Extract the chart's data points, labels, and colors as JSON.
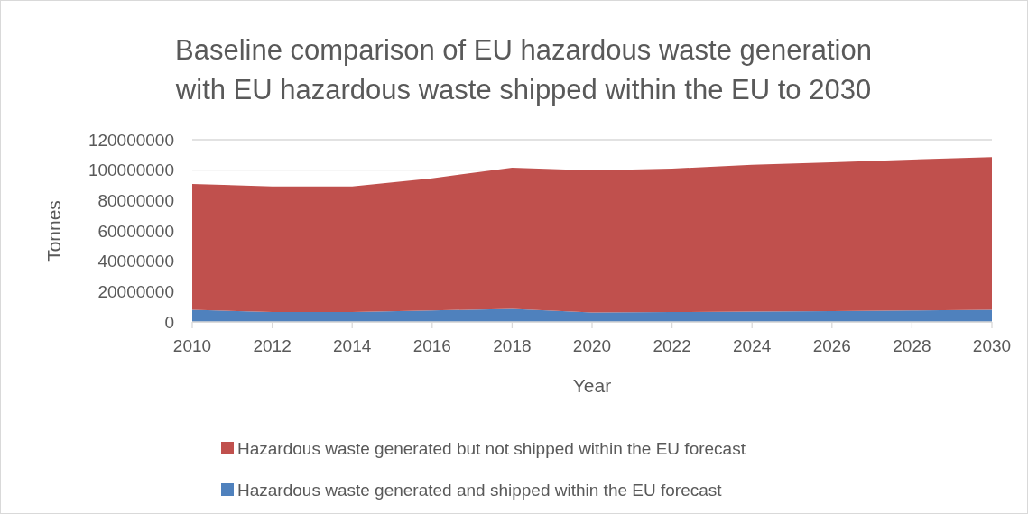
{
  "chart_data": {
    "type": "area",
    "title": "Baseline comparison of EU hazardous waste generation\nwith EU hazardous waste shipped within the EU to 2030",
    "xlabel": "Year",
    "ylabel": "Tonnes",
    "x": [
      2010,
      2012,
      2014,
      2016,
      2018,
      2020,
      2022,
      2024,
      2026,
      2028,
      2030
    ],
    "stacked": true,
    "series": [
      {
        "name": "Hazardous waste generated and shipped within the EU forecast",
        "color": "#4f81bd",
        "values": [
          8000000,
          6500000,
          6500000,
          7600000,
          8600000,
          6200000,
          6500000,
          6900000,
          7200000,
          7600000,
          8000000
        ]
      },
      {
        "name": "Hazardous waste generated but not shipped within the EU forecast",
        "color": "#c0504d",
        "values": [
          82900000,
          82800000,
          82700000,
          87000000,
          93000000,
          93600000,
          94500000,
          96600000,
          98000000,
          99400000,
          100600000
        ]
      }
    ],
    "xlim": [
      2010,
      2030
    ],
    "xticks": [
      2010,
      2012,
      2014,
      2016,
      2018,
      2020,
      2022,
      2024,
      2026,
      2028,
      2030
    ],
    "ylim": [
      0,
      120000000
    ],
    "yticks": [
      0,
      20000000,
      40000000,
      60000000,
      80000000,
      100000000,
      120000000
    ],
    "grid": "y",
    "legend": "bottom"
  }
}
